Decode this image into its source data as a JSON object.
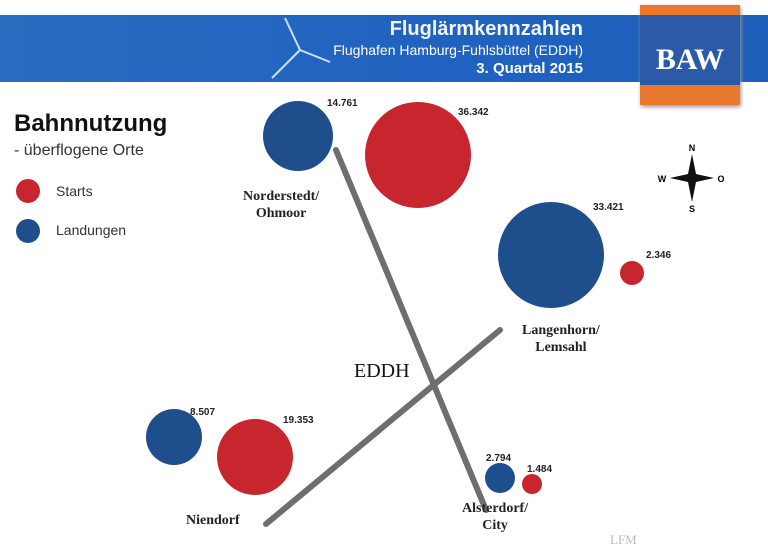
{
  "header": {
    "title": "Fluglärmkennzahlen",
    "airport": "Flughafen Hamburg-Fuhlsbüttel (EDDH)",
    "period": "3. Quartal 2015"
  },
  "logo": {
    "text": "BAW"
  },
  "heading": {
    "title": "Bahnnutzung",
    "subtitle": "- überflogene Orte"
  },
  "legend": [
    {
      "label": "Starts",
      "color": "#c8262e"
    },
    {
      "label": "Landungen",
      "color": "#1f4e8c"
    }
  ],
  "airport_label": "EDDH",
  "compass": {
    "n": "N",
    "s": "S",
    "w": "W",
    "o": "O"
  },
  "places": [
    {
      "name": "Norderstedt/\nOhmoor",
      "landungen": "14.761",
      "starts": "36.342"
    },
    {
      "name": "Langenhorn/\nLemsahl",
      "landungen": "33.421",
      "starts": "2.346"
    },
    {
      "name": "Niendorf",
      "landungen": "8.507",
      "starts": "19.353"
    },
    {
      "name": "Alsterdorf/\nCity",
      "landungen": "2.794",
      "starts": "1.484"
    }
  ],
  "watermark": "LFM"
}
